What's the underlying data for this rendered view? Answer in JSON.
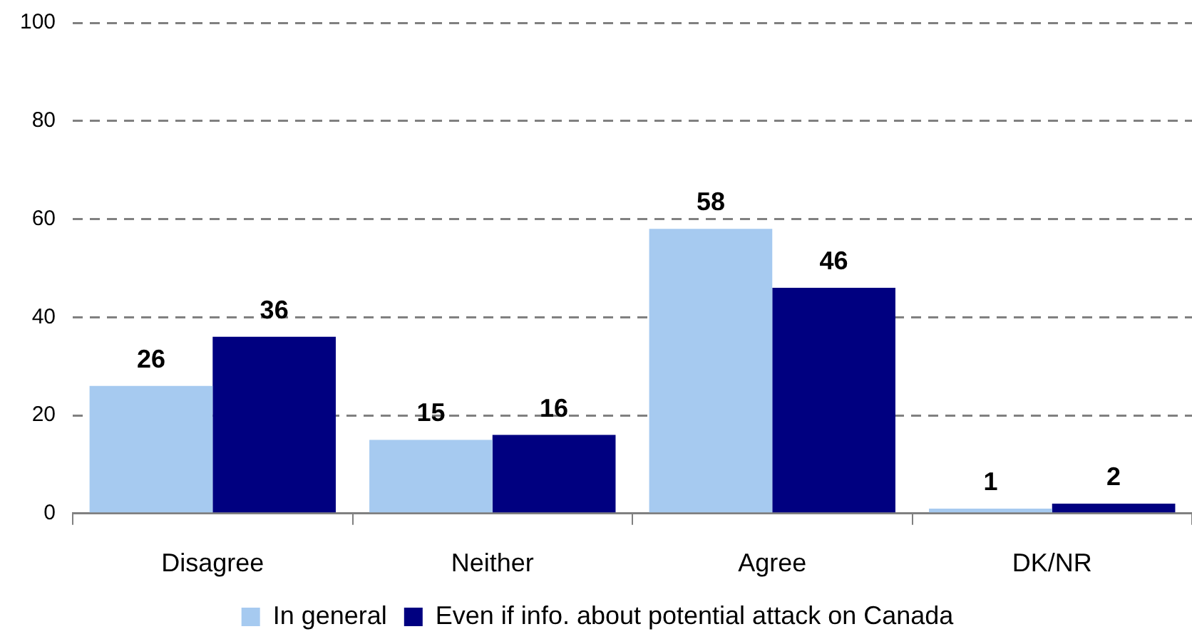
{
  "chart_data": {
    "type": "bar",
    "categories": [
      "Disagree",
      "Neither",
      "Agree",
      "DK/NR"
    ],
    "series": [
      {
        "name": "In general",
        "color": "#a6caf0",
        "values": [
          26,
          15,
          58,
          1
        ]
      },
      {
        "name": "Even if info. about potential attack on Canada",
        "color": "#000080",
        "values": [
          36,
          16,
          46,
          2
        ]
      }
    ],
    "ylim": [
      0,
      100
    ],
    "yticks": [
      0,
      20,
      40,
      60,
      80,
      100
    ],
    "grid": "y",
    "legend": "bottom",
    "data_labels": true
  }
}
